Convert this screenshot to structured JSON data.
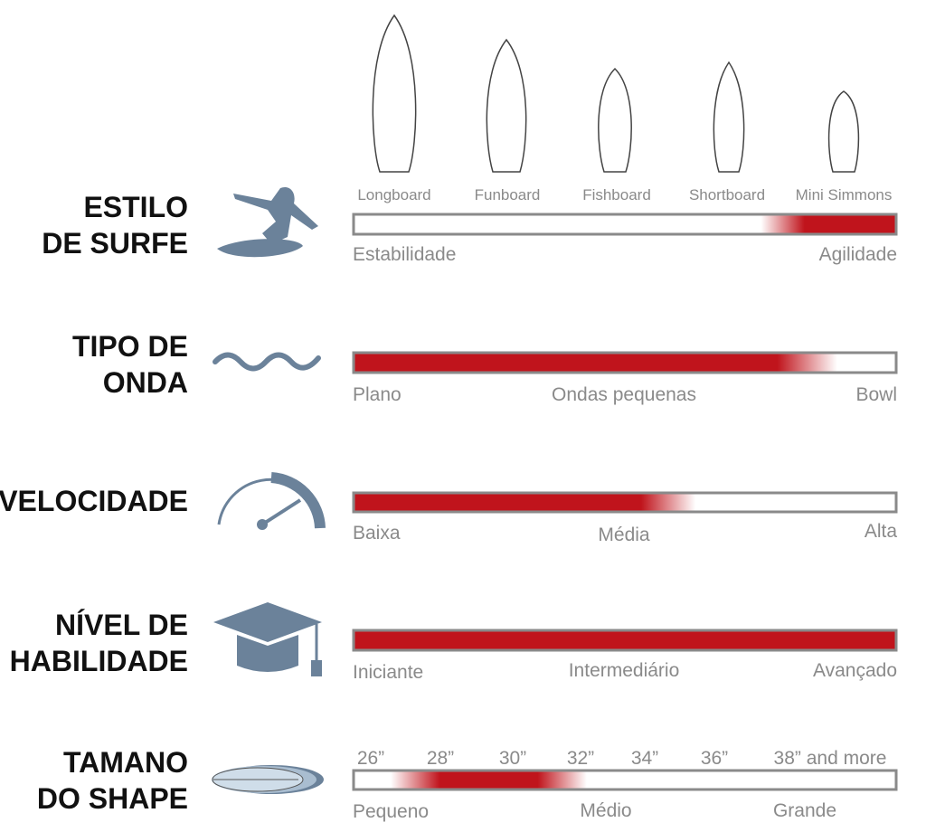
{
  "boards": [
    "Longboard",
    "Funboard",
    "Fishboard",
    "Shortboard",
    "Mini Simmons"
  ],
  "rows": [
    {
      "title": [
        "ESTILO",
        "DE SURFE"
      ],
      "labels": [
        "Estabilidade",
        "Agilidade"
      ]
    },
    {
      "title": [
        "TIPO DE",
        "ONDA"
      ],
      "labels": [
        "Plano",
        "Ondas pequenas",
        "Bowl"
      ]
    },
    {
      "title": [
        "VELOCIDADE"
      ],
      "labels": [
        "Baixa",
        "Média",
        "Alta"
      ]
    },
    {
      "title": [
        "NÍVEL DE",
        "HABILIDADE"
      ],
      "labels": [
        "Iniciante",
        "Intermediário",
        "Avançado"
      ]
    },
    {
      "title": [
        "TAMANO",
        "DO SHAPE"
      ],
      "labels": [
        "Pequeno",
        "Médio",
        "Grande"
      ]
    }
  ],
  "sizes": [
    "26”",
    "28”",
    "30”",
    "32”",
    "34”",
    "36”",
    "38” and more"
  ]
}
